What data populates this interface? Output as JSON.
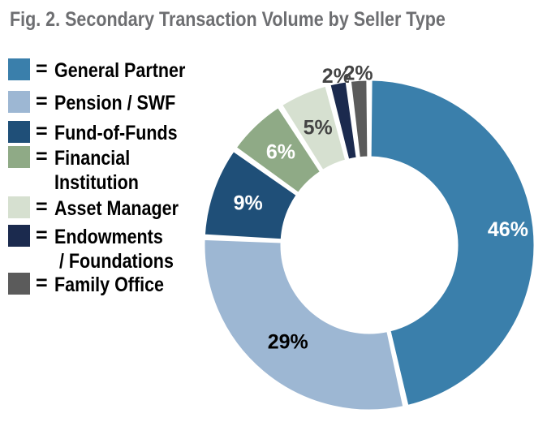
{
  "title": "Fig. 2. Secondary Transaction Volume by Seller Type",
  "legend": {
    "equals": "=",
    "items": [
      {
        "label": "General Partner",
        "color": "#3a7fab"
      },
      {
        "label": "Pension / SWF",
        "color": "#9db7d3"
      },
      {
        "label": "Fund-of-Funds",
        "color": "#1f4f78"
      },
      {
        "label": "Financial\nInstitution",
        "color": "#8faa86"
      },
      {
        "label": "Asset Manager",
        "color": "#d6e0d0"
      },
      {
        "label": "Endowments\n / Foundations",
        "color": "#1b2a4e"
      },
      {
        "label": "Family Office",
        "color": "#5b5b5b"
      }
    ]
  },
  "chart_data": {
    "type": "pie",
    "style": "donut",
    "categories": [
      "General Partner",
      "Pension / SWF",
      "Fund-of-Funds",
      "Financial Institution",
      "Asset Manager",
      "Endowments / Foundations",
      "Family Office"
    ],
    "values": [
      46,
      29,
      9,
      6,
      5,
      2,
      2
    ],
    "data_labels": [
      "46%",
      "29%",
      "9%",
      "6%",
      "5%",
      "2%",
      "2%"
    ],
    "colors": [
      "#3a7fab",
      "#9db7d3",
      "#1f4f78",
      "#8faa86",
      "#d6e0d0",
      "#1b2a4e",
      "#5b5b5b"
    ],
    "label_colors": [
      "#ffffff",
      "#000000",
      "#ffffff",
      "#ffffff",
      "#444444",
      "#444444",
      "#444444"
    ],
    "start_angle_deg": 0,
    "direction": "clockwise"
  }
}
